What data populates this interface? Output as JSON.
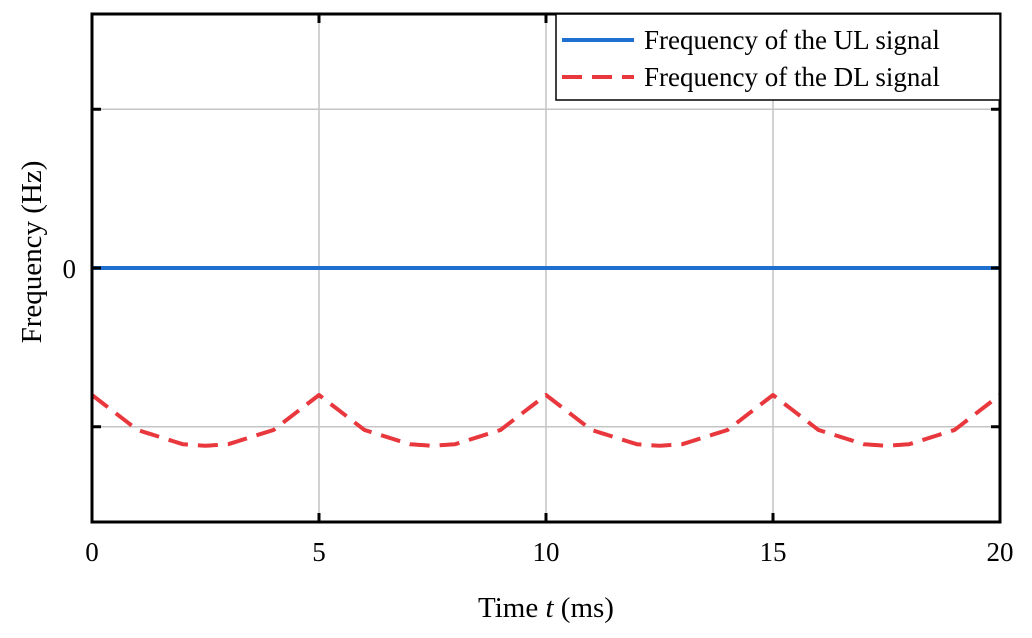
{
  "chart_data": {
    "type": "line",
    "title": "",
    "xlabel": "Time t (ms)",
    "xlabel_parts": [
      "Time ",
      "t",
      " (ms)"
    ],
    "ylabel": "Frequency (Hz)",
    "xlim": [
      0,
      20
    ],
    "ylim": [
      -1.6,
      1.6
    ],
    "x_ticks": [
      0,
      5,
      10,
      15,
      20
    ],
    "x_tick_labels": [
      "0",
      "5",
      "10",
      "15",
      "20"
    ],
    "y_ticks": [
      -1,
      0,
      1
    ],
    "y_tick_labels": [
      "",
      "0",
      ""
    ],
    "grid": true,
    "legend_position": "top-right",
    "series": [
      {
        "name": "Frequency of the UL signal",
        "color": "#1f6fd1",
        "style": "solid",
        "x": [
          0,
          20
        ],
        "y": [
          0,
          0
        ]
      },
      {
        "name": "Frequency of the DL signal",
        "color": "#e8383d",
        "style": "dashed",
        "x": [
          0,
          1,
          2,
          2.5,
          3,
          4,
          5,
          6,
          7,
          7.5,
          8,
          9,
          10,
          11,
          12,
          12.5,
          13,
          14,
          15,
          16,
          17,
          17.5,
          18,
          19,
          20
        ],
        "y": [
          -0.8,
          -1.02,
          -1.11,
          -1.12,
          -1.11,
          -1.02,
          -0.8,
          -1.02,
          -1.11,
          -1.12,
          -1.11,
          -1.02,
          -0.8,
          -1.02,
          -1.11,
          -1.12,
          -1.11,
          -1.02,
          -0.8,
          -1.02,
          -1.11,
          -1.12,
          -1.11,
          -1.02,
          -0.8
        ]
      }
    ]
  }
}
